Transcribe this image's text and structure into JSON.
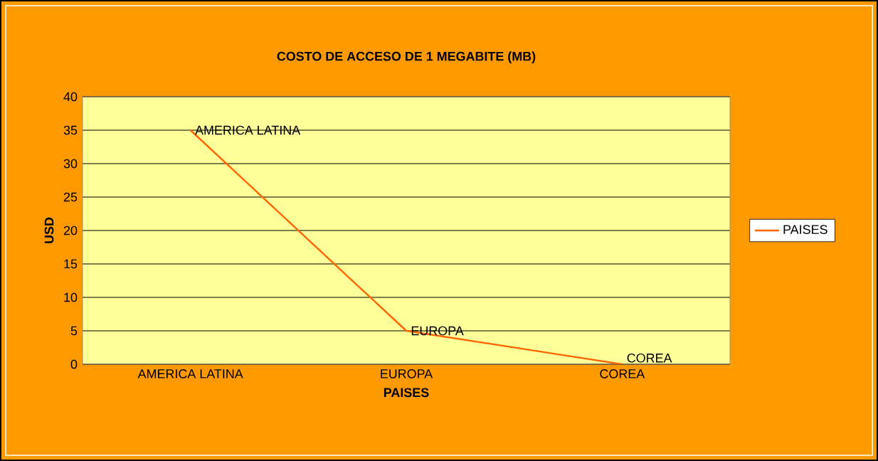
{
  "chart_data": {
    "type": "line",
    "title": "COSTO DE ACCESO DE 1 MEGABITE (MB)",
    "xlabel": "PAISES",
    "ylabel": "USD",
    "categories": [
      "AMERICA LATINA",
      "EUROPA",
      "COREA"
    ],
    "series": [
      {
        "name": "PAISES",
        "color": "#ff6600",
        "values": [
          35,
          5,
          0
        ]
      }
    ],
    "annotations": [
      {
        "text": "AMERICA LATINA",
        "x": "AMERICA LATINA",
        "y": 35
      },
      {
        "text": "EUROPA",
        "x": "EUROPA",
        "y": 5
      },
      {
        "text": "COREA",
        "x": "COREA",
        "y": 0
      }
    ],
    "ylim": [
      0,
      40
    ],
    "yticks": [
      0,
      5,
      10,
      15,
      20,
      25,
      30,
      35,
      40
    ],
    "grid": "y",
    "legend": "right",
    "marker": "none",
    "line_style": "solid"
  }
}
